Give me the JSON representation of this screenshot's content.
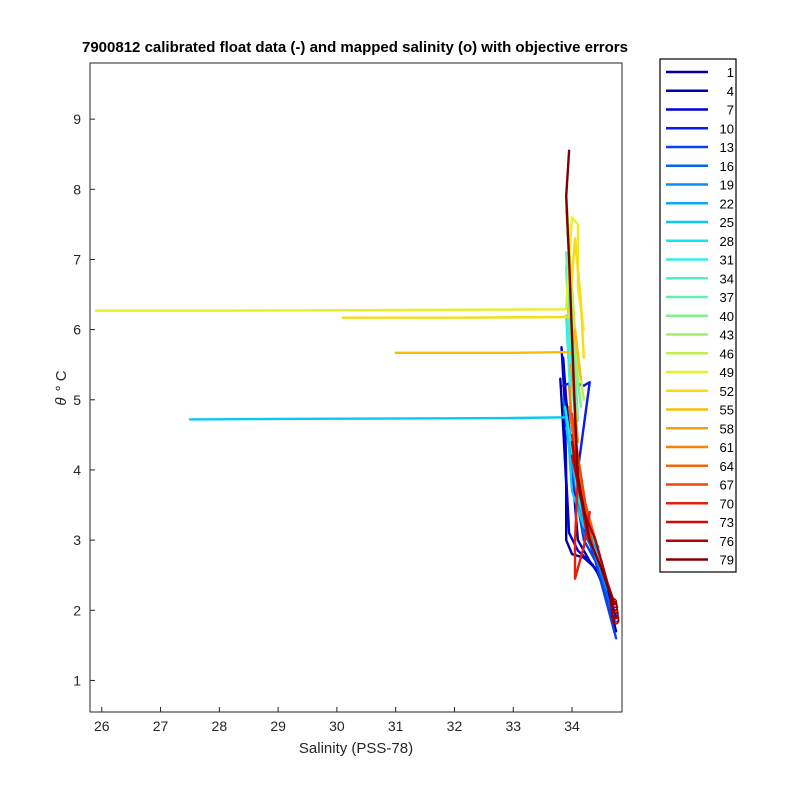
{
  "chart_data": {
    "type": "line",
    "title": "7900812 calibrated float data (-) and mapped salinity (o) with objective errors",
    "xlabel": "Salinity (PSS-78)",
    "ylabel_symbol": "θ",
    "ylabel_unit": "° C",
    "xlim": [
      25.8,
      34.85
    ],
    "ylim": [
      0.55,
      9.8
    ],
    "xticks": [
      26,
      27,
      28,
      29,
      30,
      31,
      32,
      33,
      34
    ],
    "yticks": [
      1,
      2,
      3,
      4,
      5,
      6,
      7,
      8,
      9
    ],
    "grid": false,
    "legend_position": "outside-right",
    "series": [
      {
        "name": "1",
        "color": "#000099",
        "points": [
          [
            33.8,
            5.3
          ],
          [
            33.85,
            4.6
          ],
          [
            33.9,
            3.8
          ],
          [
            33.9,
            3.0
          ],
          [
            34.0,
            2.8
          ],
          [
            34.2,
            2.75
          ],
          [
            34.4,
            2.6
          ],
          [
            34.6,
            2.2
          ],
          [
            34.75,
            1.7
          ]
        ]
      },
      {
        "name": "4",
        "color": "#0000B3",
        "points": [
          [
            33.85,
            5.6
          ],
          [
            33.9,
            5.0
          ],
          [
            34.0,
            4.2
          ],
          [
            34.05,
            3.5
          ],
          [
            34.1,
            3.0
          ],
          [
            34.3,
            2.7
          ],
          [
            34.55,
            2.4
          ],
          [
            34.7,
            2.0
          ]
        ]
      },
      {
        "name": "7",
        "color": "#0000DB",
        "points": [
          [
            33.82,
            5.75
          ],
          [
            33.88,
            4.9
          ],
          [
            33.9,
            3.9
          ],
          [
            33.95,
            3.1
          ],
          [
            34.1,
            2.85
          ],
          [
            34.35,
            2.65
          ],
          [
            34.6,
            2.3
          ],
          [
            34.75,
            1.9
          ]
        ]
      },
      {
        "name": "10",
        "color": "#0A1AF0",
        "points": [
          [
            33.85,
            5.2
          ],
          [
            34.0,
            5.25
          ],
          [
            34.2,
            5.2
          ],
          [
            34.3,
            5.25
          ],
          [
            34.1,
            4.0
          ],
          [
            34.2,
            3.2
          ],
          [
            34.45,
            2.6
          ],
          [
            34.72,
            1.85
          ]
        ]
      },
      {
        "name": "13",
        "color": "#0A40F0",
        "points": [
          [
            33.9,
            4.8
          ],
          [
            34.0,
            4.2
          ],
          [
            34.1,
            3.5
          ],
          [
            34.2,
            3.0
          ],
          [
            34.4,
            2.7
          ],
          [
            34.75,
            1.6
          ]
        ]
      },
      {
        "name": "16",
        "color": "#0066F0",
        "points": [
          [
            33.85,
            5.0
          ],
          [
            33.95,
            4.4
          ],
          [
            34.05,
            3.8
          ],
          [
            34.2,
            3.1
          ],
          [
            34.4,
            2.8
          ],
          [
            34.7,
            1.9
          ]
        ]
      },
      {
        "name": "19",
        "color": "#0A8CF5",
        "points": [
          [
            33.9,
            4.6
          ],
          [
            34.0,
            4.1
          ],
          [
            34.15,
            3.4
          ],
          [
            34.3,
            3.0
          ],
          [
            34.6,
            2.3
          ]
        ]
      },
      {
        "name": "22",
        "color": "#0AA8F5",
        "points": [
          [
            33.95,
            4.4
          ],
          [
            34.05,
            3.9
          ],
          [
            34.2,
            3.3
          ],
          [
            34.5,
            2.7
          ]
        ]
      },
      {
        "name": "25",
        "color": "#0AC8F5",
        "points": [
          [
            27.5,
            4.72
          ],
          [
            30.0,
            4.73
          ],
          [
            33.0,
            4.74
          ],
          [
            33.9,
            4.75
          ],
          [
            33.95,
            4.3
          ],
          [
            34.0,
            3.7
          ],
          [
            34.2,
            3.2
          ],
          [
            34.45,
            2.9
          ]
        ]
      },
      {
        "name": "28",
        "color": "#14E6F0",
        "points": [
          [
            33.88,
            4.9
          ],
          [
            34.0,
            4.3
          ],
          [
            34.1,
            3.6
          ],
          [
            34.3,
            3.1
          ]
        ]
      },
      {
        "name": "31",
        "color": "#33F0E0",
        "points": [
          [
            33.9,
            6.2
          ],
          [
            33.95,
            5.4
          ],
          [
            34.0,
            4.6
          ],
          [
            34.1,
            3.8
          ]
        ]
      },
      {
        "name": "34",
        "color": "#4DF0C8",
        "points": [
          [
            33.9,
            6.9
          ],
          [
            33.95,
            6.0
          ],
          [
            34.0,
            5.2
          ],
          [
            34.1,
            4.4
          ]
        ]
      },
      {
        "name": "37",
        "color": "#66F0AA",
        "points": [
          [
            33.9,
            7.1
          ],
          [
            33.95,
            6.3
          ],
          [
            34.05,
            5.5
          ],
          [
            34.1,
            4.7
          ]
        ]
      },
      {
        "name": "40",
        "color": "#80F08C",
        "points": [
          [
            33.92,
            7.4
          ],
          [
            34.0,
            6.5
          ],
          [
            34.05,
            5.7
          ],
          [
            34.15,
            4.9
          ]
        ]
      },
      {
        "name": "43",
        "color": "#A0F06E",
        "points": [
          [
            33.9,
            7.7
          ],
          [
            33.98,
            6.8
          ],
          [
            34.05,
            6.0
          ],
          [
            34.1,
            5.2
          ]
        ]
      },
      {
        "name": "46",
        "color": "#C0F050",
        "points": [
          [
            33.9,
            7.95
          ],
          [
            33.95,
            7.2
          ],
          [
            34.0,
            6.4
          ],
          [
            34.1,
            5.6
          ],
          [
            34.2,
            5.0
          ]
        ]
      },
      {
        "name": "49",
        "color": "#E6F028",
        "points": [
          [
            25.9,
            6.27
          ],
          [
            28.0,
            6.27
          ],
          [
            31.0,
            6.28
          ],
          [
            33.9,
            6.29
          ],
          [
            33.95,
            7.0
          ],
          [
            34.0,
            7.6
          ],
          [
            34.1,
            7.5
          ],
          [
            34.1,
            6.6
          ],
          [
            34.2,
            6.0
          ]
        ]
      },
      {
        "name": "52",
        "color": "#F5DC14",
        "points": [
          [
            30.1,
            6.17
          ],
          [
            32.0,
            6.17
          ],
          [
            33.95,
            6.18
          ],
          [
            34.05,
            7.3
          ],
          [
            34.15,
            6.4
          ],
          [
            34.2,
            5.6
          ]
        ]
      },
      {
        "name": "55",
        "color": "#F5BE0A",
        "points": [
          [
            31.0,
            5.67
          ],
          [
            33.0,
            5.67
          ],
          [
            34.0,
            5.68
          ],
          [
            34.05,
            6.0
          ],
          [
            34.15,
            5.3
          ]
        ]
      },
      {
        "name": "58",
        "color": "#F5A00A",
        "points": [
          [
            33.98,
            5.5
          ],
          [
            34.05,
            4.9
          ],
          [
            34.1,
            4.4
          ]
        ]
      },
      {
        "name": "61",
        "color": "#F5820A",
        "points": [
          [
            33.95,
            5.2
          ],
          [
            34.0,
            4.6
          ],
          [
            34.1,
            4.0
          ],
          [
            34.2,
            3.5
          ]
        ]
      },
      {
        "name": "64",
        "color": "#F5640A",
        "points": [
          [
            33.95,
            4.9
          ],
          [
            34.05,
            4.3
          ],
          [
            34.2,
            3.6
          ],
          [
            34.4,
            3.0
          ]
        ]
      },
      {
        "name": "67",
        "color": "#F0460A",
        "points": [
          [
            34.0,
            4.8
          ],
          [
            34.1,
            4.2
          ],
          [
            34.25,
            3.4
          ],
          [
            34.35,
            2.9
          ]
        ]
      },
      {
        "name": "70",
        "color": "#E61E0A",
        "points": [
          [
            34.0,
            4.5
          ],
          [
            34.1,
            3.9
          ],
          [
            34.05,
            3.0
          ],
          [
            34.05,
            2.45
          ],
          [
            34.2,
            2.9
          ],
          [
            34.3,
            3.4
          ]
        ]
      },
      {
        "name": "73",
        "color": "#CC0A0A",
        "points": [
          [
            34.0,
            4.2
          ],
          [
            34.15,
            3.6
          ],
          [
            34.25,
            3.1
          ],
          [
            34.5,
            2.6
          ]
        ]
      },
      {
        "name": "76",
        "color": "#B30000",
        "points": [
          [
            34.0,
            4.4
          ],
          [
            34.1,
            3.8
          ],
          [
            34.2,
            3.4
          ],
          [
            34.4,
            3.0
          ],
          [
            34.6,
            2.4
          ],
          [
            34.72,
            2.1
          ]
        ]
      },
      {
        "name": "79",
        "color": "#800000",
        "points": [
          [
            33.95,
            8.55
          ],
          [
            33.9,
            7.9
          ],
          [
            33.95,
            7.0
          ],
          [
            34.0,
            5.9
          ],
          [
            34.05,
            4.8
          ],
          [
            34.1,
            3.9
          ],
          [
            34.3,
            3.0
          ],
          [
            34.5,
            2.6
          ],
          [
            34.7,
            2.1
          ]
        ]
      }
    ],
    "mapped_points": {
      "color": "#9B0000",
      "marker": "o",
      "points": [
        [
          34.7,
          2.12
        ],
        [
          34.71,
          2.08
        ],
        [
          34.72,
          2.04
        ],
        [
          34.72,
          2.0
        ],
        [
          34.73,
          1.96
        ],
        [
          34.73,
          1.92
        ],
        [
          34.74,
          1.88
        ],
        [
          34.74,
          1.85
        ]
      ]
    }
  }
}
